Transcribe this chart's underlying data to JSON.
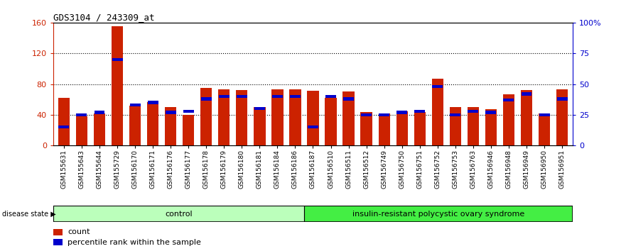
{
  "title": "GDS3104 / 243309_at",
  "samples": [
    "GSM155631",
    "GSM155643",
    "GSM155644",
    "GSM155729",
    "GSM156170",
    "GSM156171",
    "GSM156176",
    "GSM156177",
    "GSM156178",
    "GSM156179",
    "GSM156180",
    "GSM156181",
    "GSM156184",
    "GSM156186",
    "GSM156187",
    "GSM156510",
    "GSM156511",
    "GSM156512",
    "GSM156749",
    "GSM156750",
    "GSM156751",
    "GSM156752",
    "GSM156753",
    "GSM156763",
    "GSM156946",
    "GSM156948",
    "GSM156949",
    "GSM156950",
    "GSM156951"
  ],
  "counts": [
    62,
    38,
    42,
    155,
    52,
    57,
    50,
    40,
    75,
    73,
    72,
    50,
    73,
    73,
    71,
    62,
    70,
    44,
    42,
    45,
    44,
    87,
    50,
    50,
    47,
    67,
    72,
    42,
    73
  ],
  "percentile_ranks": [
    15,
    25,
    27,
    70,
    33,
    35,
    27,
    28,
    38,
    40,
    40,
    30,
    40,
    40,
    15,
    40,
    38,
    25,
    25,
    27,
    28,
    48,
    25,
    28,
    27,
    37,
    42,
    25,
    38
  ],
  "control_count": 14,
  "bar_color": "#cc2200",
  "percentile_color": "#0000cc",
  "control_color": "#bbffbb",
  "disease_color": "#44ee44",
  "ylim_left": [
    0,
    160
  ],
  "ylim_right": [
    0,
    100
  ],
  "yticks_left": [
    0,
    40,
    80,
    120,
    160
  ],
  "yticks_right": [
    0,
    25,
    50,
    75,
    100
  ],
  "ytick_labels_right": [
    "0",
    "25",
    "50",
    "75",
    "100%"
  ],
  "bar_width": 0.65,
  "ylabel_left_color": "#cc2200",
  "ylabel_right_color": "#0000cc"
}
